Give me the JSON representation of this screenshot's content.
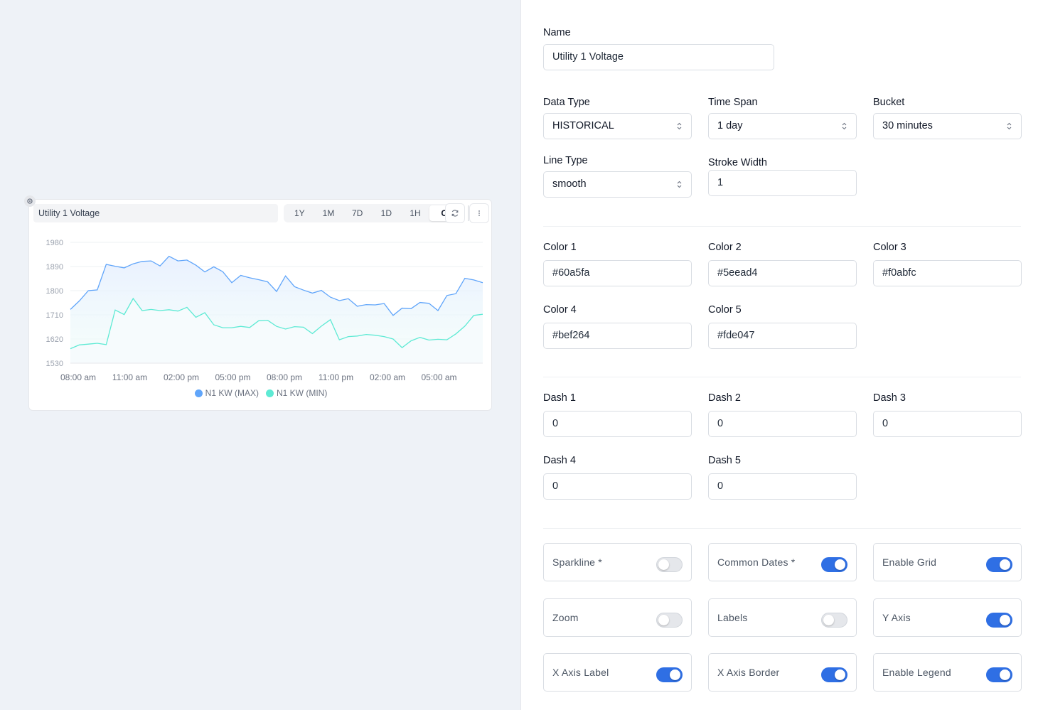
{
  "preview": {
    "title": "Utility 1 Voltage",
    "ranges": [
      "1Y",
      "1M",
      "7D",
      "1D",
      "1H",
      "C"
    ],
    "active_range": "C",
    "refresh_icon": "refresh-icon",
    "more_icon": "more-vertical-icon",
    "settings_icon": "gear-icon"
  },
  "chart_data": {
    "type": "area",
    "title": "",
    "ylim": [
      1530,
      1980
    ],
    "yticks": [
      1980,
      1890,
      1800,
      1710,
      1620,
      1530
    ],
    "xtick_labels": [
      "08:00 am",
      "11:00 am",
      "02:00 pm",
      "05:00 pm",
      "08:00 pm",
      "11:00 pm",
      "02:00 am",
      "05:00 am"
    ],
    "grid": true,
    "legend_position": "bottom",
    "series": [
      {
        "name": "N1 KW (MAX)",
        "color": "#60a5fa",
        "values": [
          1730,
          1762,
          1800,
          1803,
          1898,
          1891,
          1885,
          1900,
          1909,
          1911,
          1892,
          1928,
          1911,
          1914,
          1895,
          1870,
          1889,
          1871,
          1830,
          1857,
          1848,
          1841,
          1833,
          1797,
          1855,
          1815,
          1802,
          1791,
          1801,
          1776,
          1763,
          1770,
          1742,
          1748,
          1747,
          1752,
          1708,
          1735,
          1733,
          1756,
          1753,
          1726,
          1782,
          1789,
          1846,
          1840,
          1830
        ]
      },
      {
        "name": "N1 KW (MIN)",
        "color": "#5eead4",
        "values": [
          1584,
          1598,
          1601,
          1604,
          1599,
          1728,
          1711,
          1771,
          1726,
          1730,
          1726,
          1729,
          1724,
          1738,
          1701,
          1718,
          1673,
          1662,
          1662,
          1667,
          1663,
          1688,
          1690,
          1667,
          1657,
          1666,
          1664,
          1640,
          1668,
          1692,
          1617,
          1629,
          1631,
          1637,
          1634,
          1629,
          1620,
          1588,
          1613,
          1626,
          1616,
          1619,
          1617,
          1639,
          1668,
          1708,
          1712
        ]
      }
    ]
  },
  "form": {
    "name": {
      "label": "Name",
      "value": "Utility 1 Voltage"
    },
    "data_type": {
      "label": "Data Type",
      "value": "HISTORICAL"
    },
    "time_span": {
      "label": "Time Span",
      "value": "1 day"
    },
    "bucket": {
      "label": "Bucket",
      "value": "30 minutes"
    },
    "line_type": {
      "label": "Line Type",
      "value": "smooth"
    },
    "stroke_width": {
      "label": "Stroke Width",
      "value": "1"
    },
    "colors": [
      {
        "label": "Color 1",
        "value": "#60a5fa"
      },
      {
        "label": "Color 2",
        "value": "#5eead4"
      },
      {
        "label": "Color 3",
        "value": "#f0abfc"
      },
      {
        "label": "Color 4",
        "value": "#bef264"
      },
      {
        "label": "Color 5",
        "value": "#fde047"
      }
    ],
    "dashes": [
      {
        "label": "Dash 1",
        "value": "0"
      },
      {
        "label": "Dash 2",
        "value": "0"
      },
      {
        "label": "Dash 3",
        "value": "0"
      },
      {
        "label": "Dash 4",
        "value": "0"
      },
      {
        "label": "Dash 5",
        "value": "0"
      }
    ],
    "toggles": [
      {
        "label": "Sparkline *",
        "on": false
      },
      {
        "label": "Common Dates *",
        "on": true
      },
      {
        "label": "Enable Grid",
        "on": true
      },
      {
        "label": "Zoom",
        "on": false
      },
      {
        "label": "Labels",
        "on": false
      },
      {
        "label": "Y Axis",
        "on": true
      },
      {
        "label": "X Axis Label",
        "on": true
      },
      {
        "label": "X Axis Border",
        "on": true
      },
      {
        "label": "Enable Legend",
        "on": true
      }
    ],
    "accent_color": "#2f6fe4"
  }
}
